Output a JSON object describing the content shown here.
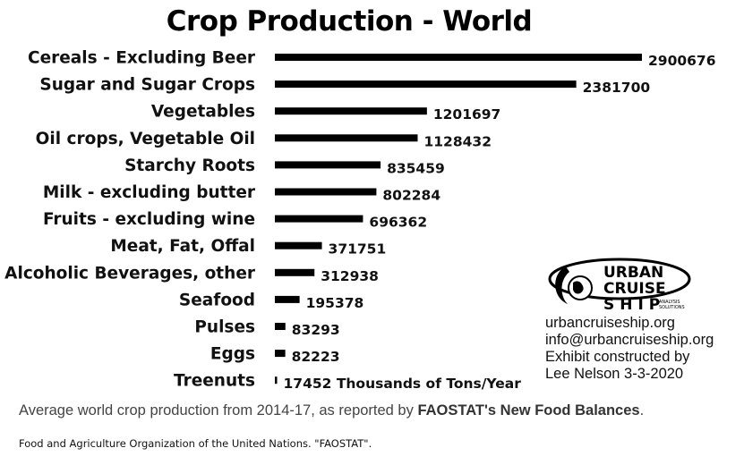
{
  "chart_data": {
    "type": "bar",
    "orientation": "horizontal",
    "title": "Crop Production - World",
    "categories": [
      "Cereals - Excluding Beer",
      "Sugar and Sugar Crops",
      "Vegetables",
      "Oil crops, Vegetable Oil",
      "Starchy Roots",
      "Milk - excluding butter",
      "Fruits - excluding wine",
      "Meat, Fat, Offal",
      "Alcoholic Beverages, other",
      "Seafood",
      "Pulses",
      "Eggs",
      "Treenuts"
    ],
    "values": [
      2900676,
      2381700,
      1201697,
      1128432,
      835459,
      802284,
      696362,
      371751,
      312938,
      195378,
      83293,
      82223,
      17452
    ],
    "value_labels": [
      "2900676",
      "2381700",
      "1201697",
      "1128432",
      "835459",
      "802284",
      "696362",
      "371751",
      "312938",
      "195378",
      "83293",
      "82223",
      "17452 Thousands of Tons/Year"
    ],
    "bar_color": "#000000",
    "grid": false,
    "legend": "none"
  },
  "logo": {
    "line1": "URBAN",
    "line2": "CRUISE",
    "line3": "SHIP",
    "tag1": "ANALYSIS",
    "tag2": "SOLUTIONS"
  },
  "contact": {
    "website": "urbancruiseship.org",
    "email": "info@urbancruiseship.org",
    "credit1": "Exhibit constructed by",
    "credit2": "Lee Nelson 3-3-2020"
  },
  "caption": {
    "prefix": "Average world crop production from 2014-17, as reported by ",
    "bold": "FAOSTAT's New Food Balances",
    "suffix": "."
  },
  "source": "Food and Agriculture Organization of the United Nations. \"FAOSTAT\"."
}
